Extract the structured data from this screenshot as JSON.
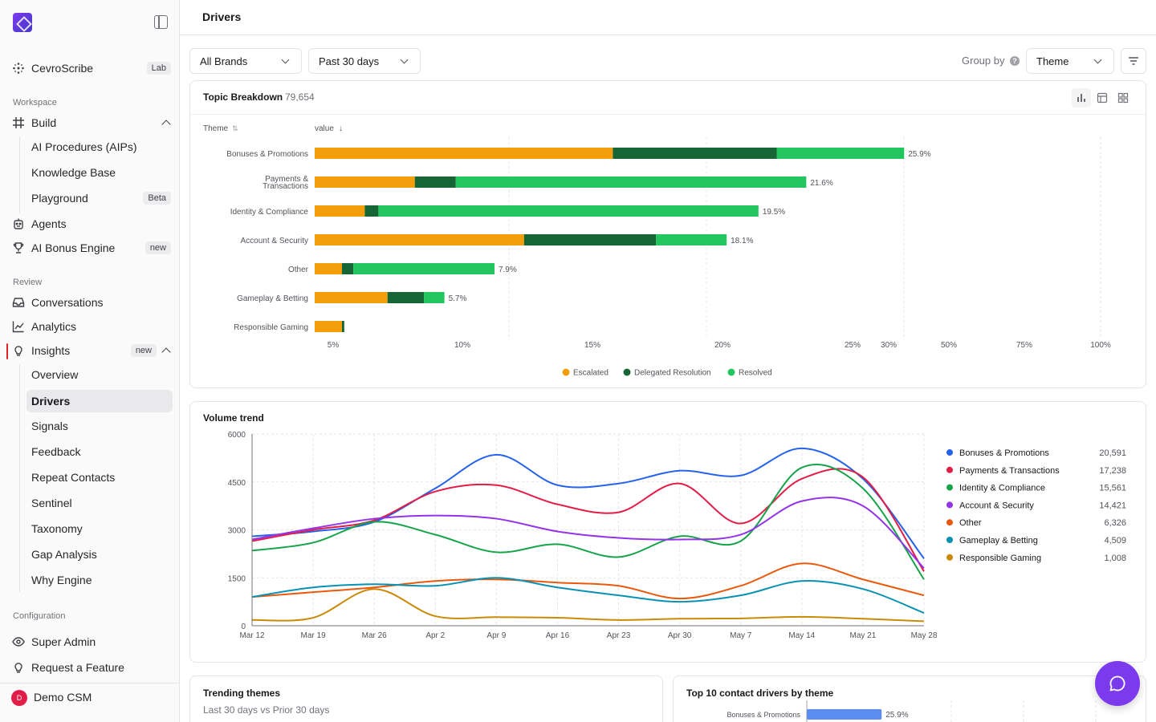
{
  "sidebar": {
    "app_name": "CevroScribe",
    "app_badge": "Lab",
    "sections": {
      "workspace": "Workspace",
      "review": "Review",
      "configuration": "Configuration"
    },
    "build": {
      "label": "Build",
      "items": [
        "AI Procedures (AIPs)",
        "Knowledge Base",
        "Playground"
      ],
      "playground_badge": "Beta"
    },
    "agents": "Agents",
    "bonus_engine": {
      "label": "AI Bonus Engine",
      "badge": "new"
    },
    "conversations": "Conversations",
    "analytics": "Analytics",
    "insights": {
      "label": "Insights",
      "badge": "new",
      "items": [
        "Overview",
        "Drivers",
        "Signals",
        "Feedback",
        "Repeat Contacts",
        "Sentinel",
        "Taxonomy",
        "Gap Analysis",
        "Why Engine"
      ],
      "active": "Drivers"
    },
    "super_admin": "Super Admin",
    "request_feature": "Request a Feature",
    "user": {
      "initial": "D",
      "name": "Demo CSM"
    }
  },
  "header": {
    "title": "Drivers"
  },
  "filters": {
    "brand": "All Brands",
    "period": "Past 30 days",
    "group_by_label": "Group by",
    "group_by_help": "?",
    "group_by_value": "Theme"
  },
  "topic_breakdown": {
    "title": "Topic Breakdown",
    "count": "79,654",
    "col_theme": "Theme",
    "col_value": "value",
    "sort_both": "⇅",
    "sort_down": "↓"
  },
  "volume_trend": {
    "title": "Volume trend"
  },
  "trending": {
    "title": "Trending themes",
    "subtitle": "Last 30 days vs Prior 30 days"
  },
  "top_drivers": {
    "title": "Top 10 contact drivers by theme"
  },
  "colors": {
    "escalated": "#f59e0b",
    "delegated": "#166534",
    "resolved": "#22c55e",
    "bonuses": "#2563eb",
    "payments": "#e11d48",
    "identity": "#16a34a",
    "account": "#9333ea",
    "other": "#ea580c",
    "gameplay": "#0891b2",
    "responsible": "#ca8a04",
    "top_bar": "#5b8def",
    "fab": "#7c3aed"
  },
  "icons": {
    "cevroscribe": "sparkle-icon",
    "build": "hash-grid-icon",
    "agents": "robot-icon",
    "bonus_engine": "trophy-icon",
    "conversations": "inbox-icon",
    "analytics": "line-chart-icon",
    "insights": "lightbulb-icon",
    "super_admin": "eye-icon",
    "request_feature": "lightbulb-icon",
    "chat": "chat-bubble-icon"
  },
  "chart_data": [
    {
      "type": "bar",
      "stacked": true,
      "orientation": "horizontal",
      "categories": [
        "Bonuses & Promotions",
        "Payments & Transactions",
        "Identity & Compliance",
        "Account & Security",
        "Other",
        "Gameplay & Betting",
        "Responsible Gaming"
      ],
      "category_lines": [
        [
          "Bonuses & Promotions"
        ],
        [
          "Payments &",
          "Transactions"
        ],
        [
          "Identity & Compliance"
        ],
        [
          "Account & Security"
        ],
        [
          "Other"
        ],
        [
          "Gameplay & Betting"
        ],
        [
          "Responsible Gaming"
        ]
      ],
      "series": [
        {
          "name": "Escalated",
          "values": [
            13.1,
            4.4,
            2.2,
            9.2,
            1.2,
            3.2,
            1.2
          ]
        },
        {
          "name": "Delegated Resolution",
          "values": [
            7.2,
            1.8,
            0.6,
            5.8,
            0.5,
            1.6,
            0.1
          ]
        },
        {
          "name": "Resolved",
          "values": [
            5.6,
            15.4,
            16.7,
            3.1,
            6.2,
            0.9,
            0
          ]
        }
      ],
      "data_labels": [
        "25.9%",
        "21.6%",
        "19.5%",
        "18.1%",
        "7.9%",
        "5.7%",
        ""
      ],
      "x_ticks": [
        "5%",
        "10%",
        "15%",
        "20%",
        "25%",
        "30%",
        "50%",
        "75%",
        "100%"
      ],
      "xlabel": "",
      "ylabel": "",
      "legend_position": "bottom"
    },
    {
      "type": "line",
      "title": "Volume trend",
      "x": [
        "Mar 12",
        "Mar 19",
        "Mar 26",
        "Apr 2",
        "Apr 9",
        "Apr 16",
        "Apr 23",
        "Apr 30",
        "May 7",
        "May 14",
        "May 21",
        "May 28"
      ],
      "ylim": [
        0,
        6000
      ],
      "y_ticks": [
        "6000",
        "4500",
        "3000",
        "1500",
        "0"
      ],
      "series": [
        {
          "name": "Bonuses & Promotions",
          "total": "20,591",
          "values": [
            2800,
            2950,
            3250,
            4300,
            5350,
            4400,
            4450,
            4850,
            4700,
            5550,
            4600,
            2100
          ]
        },
        {
          "name": "Payments & Transactions",
          "total": "17,238",
          "values": [
            2650,
            3000,
            3300,
            4200,
            4400,
            3800,
            3550,
            4450,
            3200,
            4600,
            4650,
            1700
          ]
        },
        {
          "name": "Identity & Compliance",
          "total": "15,561",
          "values": [
            2350,
            2600,
            3250,
            2850,
            2300,
            2550,
            2150,
            2800,
            2650,
            4950,
            4300,
            1450
          ]
        },
        {
          "name": "Account & Security",
          "total": "14,421",
          "values": [
            2700,
            3050,
            3350,
            3450,
            3350,
            2950,
            2750,
            2700,
            2850,
            3900,
            3750,
            1800
          ]
        },
        {
          "name": "Other",
          "total": "6,326",
          "values": [
            900,
            1050,
            1200,
            1400,
            1450,
            1350,
            1250,
            850,
            1250,
            1950,
            1450,
            950
          ]
        },
        {
          "name": "Gameplay & Betting",
          "total": "4,509",
          "values": [
            900,
            1200,
            1300,
            1250,
            1500,
            1200,
            950,
            750,
            950,
            1400,
            1150,
            400
          ]
        },
        {
          "name": "Responsible Gaming",
          "total": "1,008",
          "values": [
            180,
            250,
            1150,
            300,
            270,
            250,
            180,
            220,
            230,
            280,
            220,
            140
          ]
        }
      ],
      "legend_position": "right"
    },
    {
      "type": "bar",
      "orientation": "horizontal",
      "title": "Top 10 contact drivers by theme",
      "categories": [
        "Bonuses & Promotions"
      ],
      "values": [
        25.9
      ],
      "data_labels": [
        "25.9%"
      ]
    }
  ]
}
